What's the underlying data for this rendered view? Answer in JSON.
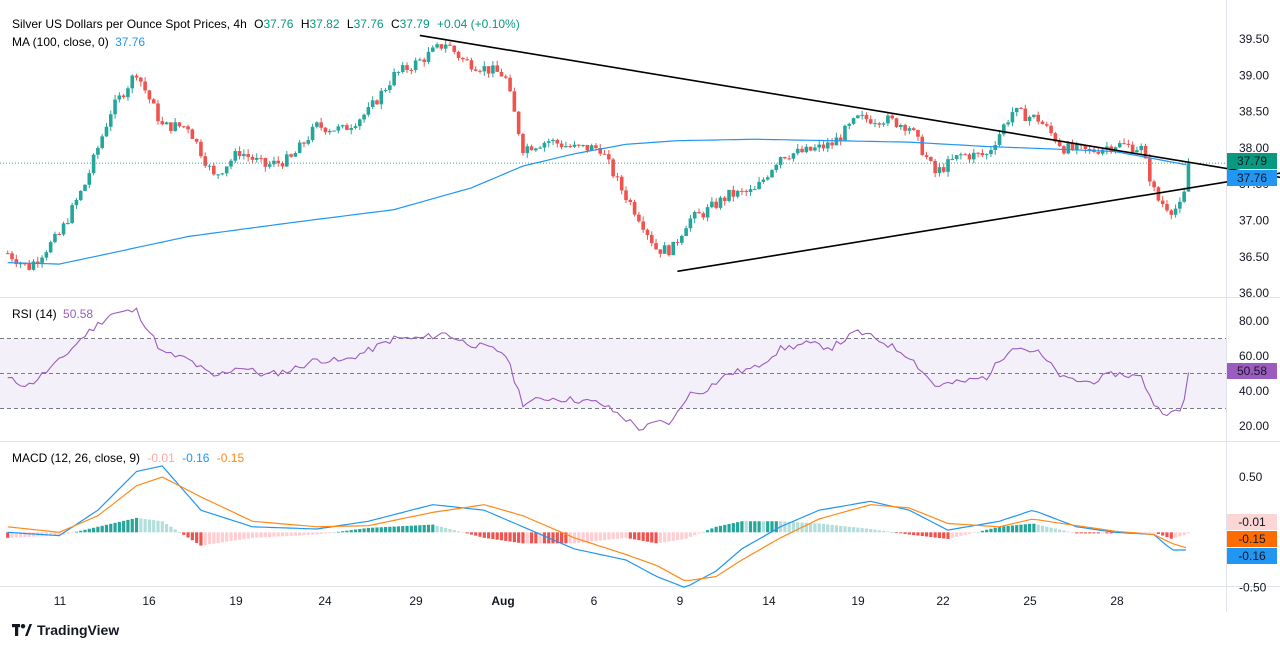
{
  "header": {
    "title": "Silver US Dollars per Ounce Spot Prices, 4h",
    "o_label": "O",
    "o": "37.76",
    "h_label": "H",
    "h": "37.82",
    "l_label": "L",
    "l": "37.76",
    "c_label": "C",
    "c": "37.79",
    "change": "+0.04 (+0.10%)"
  },
  "ma_legend": {
    "label": "MA (100, close, 0)",
    "value": "37.76"
  },
  "rsi_legend": {
    "label": "RSI (14)",
    "value": "50.58"
  },
  "macd_legend": {
    "label": "MACD (12, 26, close, 9)",
    "hist": "-0.01",
    "macd": "-0.16",
    "signal": "-0.15"
  },
  "price_badges": {
    "close": "37.79",
    "ma": "37.76"
  },
  "rsi_badge": "50.58",
  "macd_badges": {
    "hist": "-0.01",
    "signal": "-0.15",
    "macd": "-0.16"
  },
  "brand": "TradingView",
  "colors": {
    "up": "#26a69a",
    "down": "#ef5350",
    "ma": "#2196f3",
    "rsi": "#9c5cbf",
    "macd": "#2196f3",
    "signal": "#ff8a1a",
    "hist_up": "#26a69a",
    "hist_down": "#ef5350",
    "trendline": "#000000"
  },
  "chart_data": [
    {
      "type": "candlestick",
      "title": "Silver US Dollars per Ounce Spot Prices, 4h",
      "x_ticks": [
        "11",
        "16",
        "19",
        "24",
        "29",
        "Aug",
        "6",
        "9",
        "14",
        "19",
        "22",
        "25",
        "28"
      ],
      "y_ticks": [
        "39.50",
        "39.00",
        "38.50",
        "38.00",
        "37.50",
        "37.00",
        "36.50",
        "36.00"
      ],
      "ylim": [
        35.96,
        39.57
      ],
      "x_range_days": [
        -20.3,
        27.3
      ],
      "last_close": 37.79,
      "ma_last": 37.76,
      "close_anchors": [
        [
          -20.0,
          36.55
        ],
        [
          -19.2,
          36.35
        ],
        [
          -18.0,
          36.8
        ],
        [
          -17.0,
          37.5
        ],
        [
          -16.0,
          38.5
        ],
        [
          -15.0,
          39.05
        ],
        [
          -14.0,
          38.3
        ],
        [
          -13.0,
          38.3
        ],
        [
          -12.0,
          37.6
        ],
        [
          -11.0,
          37.95
        ],
        [
          -10.0,
          37.75
        ],
        [
          -9.0,
          37.85
        ],
        [
          -8.0,
          38.3
        ],
        [
          -7.0,
          38.25
        ],
        [
          -6.0,
          38.5
        ],
        [
          -5.0,
          39.0
        ],
        [
          -4.0,
          39.2
        ],
        [
          -3.0,
          39.45
        ],
        [
          -2.3,
          39.2
        ],
        [
          -1.5,
          39.1
        ],
        [
          -0.7,
          39.0
        ],
        [
          0.0,
          38.0
        ],
        [
          1.0,
          38.1
        ],
        [
          2.0,
          38.0
        ],
        [
          3.0,
          38.0
        ],
        [
          3.8,
          37.45
        ],
        [
          4.6,
          37.0
        ],
        [
          5.2,
          36.6
        ],
        [
          5.8,
          36.6
        ],
        [
          6.4,
          37.0
        ],
        [
          7.0,
          37.1
        ],
        [
          8.0,
          37.35
        ],
        [
          9.0,
          37.4
        ],
        [
          10.0,
          37.9
        ],
        [
          11.0,
          37.95
        ],
        [
          12.0,
          38.05
        ],
        [
          13.0,
          38.4
        ],
        [
          14.0,
          38.4
        ],
        [
          15.0,
          38.3
        ],
        [
          16.0,
          37.65
        ],
        [
          17.0,
          37.9
        ],
        [
          18.0,
          37.9
        ],
        [
          19.0,
          38.5
        ],
        [
          20.0,
          38.4
        ],
        [
          21.0,
          38.0
        ],
        [
          22.0,
          37.95
        ],
        [
          23.0,
          38.05
        ],
        [
          24.0,
          38.0
        ],
        [
          24.6,
          37.3
        ],
        [
          25.2,
          37.15
        ],
        [
          25.6,
          37.2
        ],
        [
          25.9,
          37.79
        ]
      ],
      "ma100_anchors": [
        [
          -20.0,
          36.42
        ],
        [
          -18.0,
          36.4
        ],
        [
          -16.0,
          36.55
        ],
        [
          -13.0,
          36.78
        ],
        [
          -9.0,
          36.97
        ],
        [
          -5.0,
          37.15
        ],
        [
          -2.0,
          37.45
        ],
        [
          0.0,
          37.75
        ],
        [
          2.0,
          37.92
        ],
        [
          4.0,
          38.05
        ],
        [
          6.0,
          38.1
        ],
        [
          9.0,
          38.12
        ],
        [
          12.0,
          38.1
        ],
        [
          15.0,
          38.08
        ],
        [
          18.0,
          38.02
        ],
        [
          21.0,
          37.98
        ],
        [
          23.0,
          37.95
        ],
        [
          25.9,
          37.76
        ]
      ],
      "trendlines": [
        {
          "name": "upper",
          "points": [
            [
              -4.0,
              39.55
            ],
            [
              25.9,
              37.8
            ]
          ]
        },
        {
          "name": "lower",
          "points": [
            [
              6.0,
              36.3
            ],
            [
              25.9,
              37.45
            ]
          ]
        }
      ]
    },
    {
      "type": "line",
      "title": "RSI (14)",
      "y_ticks": [
        "80.00",
        "60.00",
        "40.00",
        "20.00"
      ],
      "ylim": [
        12,
        92
      ],
      "bands": [
        30,
        50,
        70
      ],
      "last_value": 50.58,
      "anchors": [
        [
          -20.0,
          47
        ],
        [
          -19.2,
          43
        ],
        [
          -18.0,
          57
        ],
        [
          -17.0,
          72
        ],
        [
          -16.0,
          84
        ],
        [
          -15.0,
          86
        ],
        [
          -14.0,
          62
        ],
        [
          -13.0,
          58
        ],
        [
          -12.0,
          48
        ],
        [
          -11.0,
          54
        ],
        [
          -10.0,
          49
        ],
        [
          -9.0,
          52
        ],
        [
          -8.0,
          58
        ],
        [
          -7.0,
          57
        ],
        [
          -6.0,
          63
        ],
        [
          -5.0,
          70
        ],
        [
          -4.0,
          70
        ],
        [
          -3.0,
          73
        ],
        [
          -2.3,
          68
        ],
        [
          -1.5,
          65
        ],
        [
          -0.7,
          62
        ],
        [
          0.0,
          33
        ],
        [
          1.0,
          36
        ],
        [
          2.0,
          35
        ],
        [
          3.0,
          33
        ],
        [
          3.8,
          26
        ],
        [
          4.6,
          18
        ],
        [
          5.2,
          22
        ],
        [
          5.8,
          22
        ],
        [
          6.4,
          38
        ],
        [
          7.0,
          40
        ],
        [
          8.0,
          50
        ],
        [
          9.0,
          53
        ],
        [
          10.0,
          64
        ],
        [
          11.0,
          67
        ],
        [
          12.0,
          65
        ],
        [
          13.0,
          74
        ],
        [
          14.0,
          68
        ],
        [
          15.0,
          60
        ],
        [
          16.0,
          43
        ],
        [
          17.0,
          45
        ],
        [
          18.0,
          48
        ],
        [
          19.0,
          66
        ],
        [
          20.0,
          62
        ],
        [
          21.0,
          47
        ],
        [
          22.0,
          45
        ],
        [
          23.0,
          50
        ],
        [
          24.0,
          48
        ],
        [
          24.6,
          30
        ],
        [
          25.2,
          27
        ],
        [
          25.6,
          29
        ],
        [
          25.9,
          50.58
        ]
      ]
    },
    {
      "type": "line",
      "title": "MACD (12, 26, close, 9)",
      "y_ticks": [
        "0.50",
        "-0.50"
      ],
      "ylim": [
        -0.72,
        0.78
      ],
      "series": [
        {
          "name": "MACD",
          "anchors": [
            [
              -20.0,
              0.0
            ],
            [
              -18.0,
              -0.03
            ],
            [
              -16.5,
              0.2
            ],
            [
              -15.0,
              0.55
            ],
            [
              -14.0,
              0.6
            ],
            [
              -12.5,
              0.2
            ],
            [
              -10.5,
              0.05
            ],
            [
              -8.0,
              0.03
            ],
            [
              -6.0,
              0.1
            ],
            [
              -3.5,
              0.25
            ],
            [
              -1.5,
              0.2
            ],
            [
              0.0,
              0.05
            ],
            [
              2.0,
              -0.15
            ],
            [
              4.0,
              -0.25
            ],
            [
              5.2,
              -0.4
            ],
            [
              6.3,
              -0.5
            ],
            [
              7.5,
              -0.35
            ],
            [
              8.5,
              -0.15
            ],
            [
              10.0,
              0.05
            ],
            [
              11.5,
              0.2
            ],
            [
              13.5,
              0.28
            ],
            [
              15.0,
              0.2
            ],
            [
              16.5,
              0.02
            ],
            [
              18.5,
              0.1
            ],
            [
              19.8,
              0.2
            ],
            [
              21.5,
              0.05
            ],
            [
              23.0,
              0.0
            ],
            [
              24.5,
              -0.02
            ],
            [
              25.2,
              -0.16
            ],
            [
              25.9,
              -0.16
            ]
          ]
        },
        {
          "name": "Signal",
          "anchors": [
            [
              -20.0,
              0.05
            ],
            [
              -18.0,
              0.0
            ],
            [
              -16.5,
              0.15
            ],
            [
              -15.0,
              0.42
            ],
            [
              -14.0,
              0.5
            ],
            [
              -12.5,
              0.32
            ],
            [
              -10.5,
              0.1
            ],
            [
              -8.0,
              0.05
            ],
            [
              -6.0,
              0.06
            ],
            [
              -3.5,
              0.18
            ],
            [
              -1.5,
              0.25
            ],
            [
              0.0,
              0.15
            ],
            [
              2.0,
              -0.05
            ],
            [
              4.0,
              -0.2
            ],
            [
              5.2,
              -0.3
            ],
            [
              6.3,
              -0.44
            ],
            [
              7.5,
              -0.4
            ],
            [
              8.5,
              -0.25
            ],
            [
              10.0,
              -0.05
            ],
            [
              11.5,
              0.12
            ],
            [
              13.5,
              0.25
            ],
            [
              15.0,
              0.22
            ],
            [
              16.5,
              0.08
            ],
            [
              18.5,
              0.05
            ],
            [
              19.8,
              0.12
            ],
            [
              21.5,
              0.06
            ],
            [
              23.0,
              0.01
            ],
            [
              24.5,
              -0.02
            ],
            [
              25.2,
              -0.1
            ],
            [
              25.9,
              -0.15
            ]
          ]
        }
      ],
      "histogram_last": -0.01
    }
  ]
}
